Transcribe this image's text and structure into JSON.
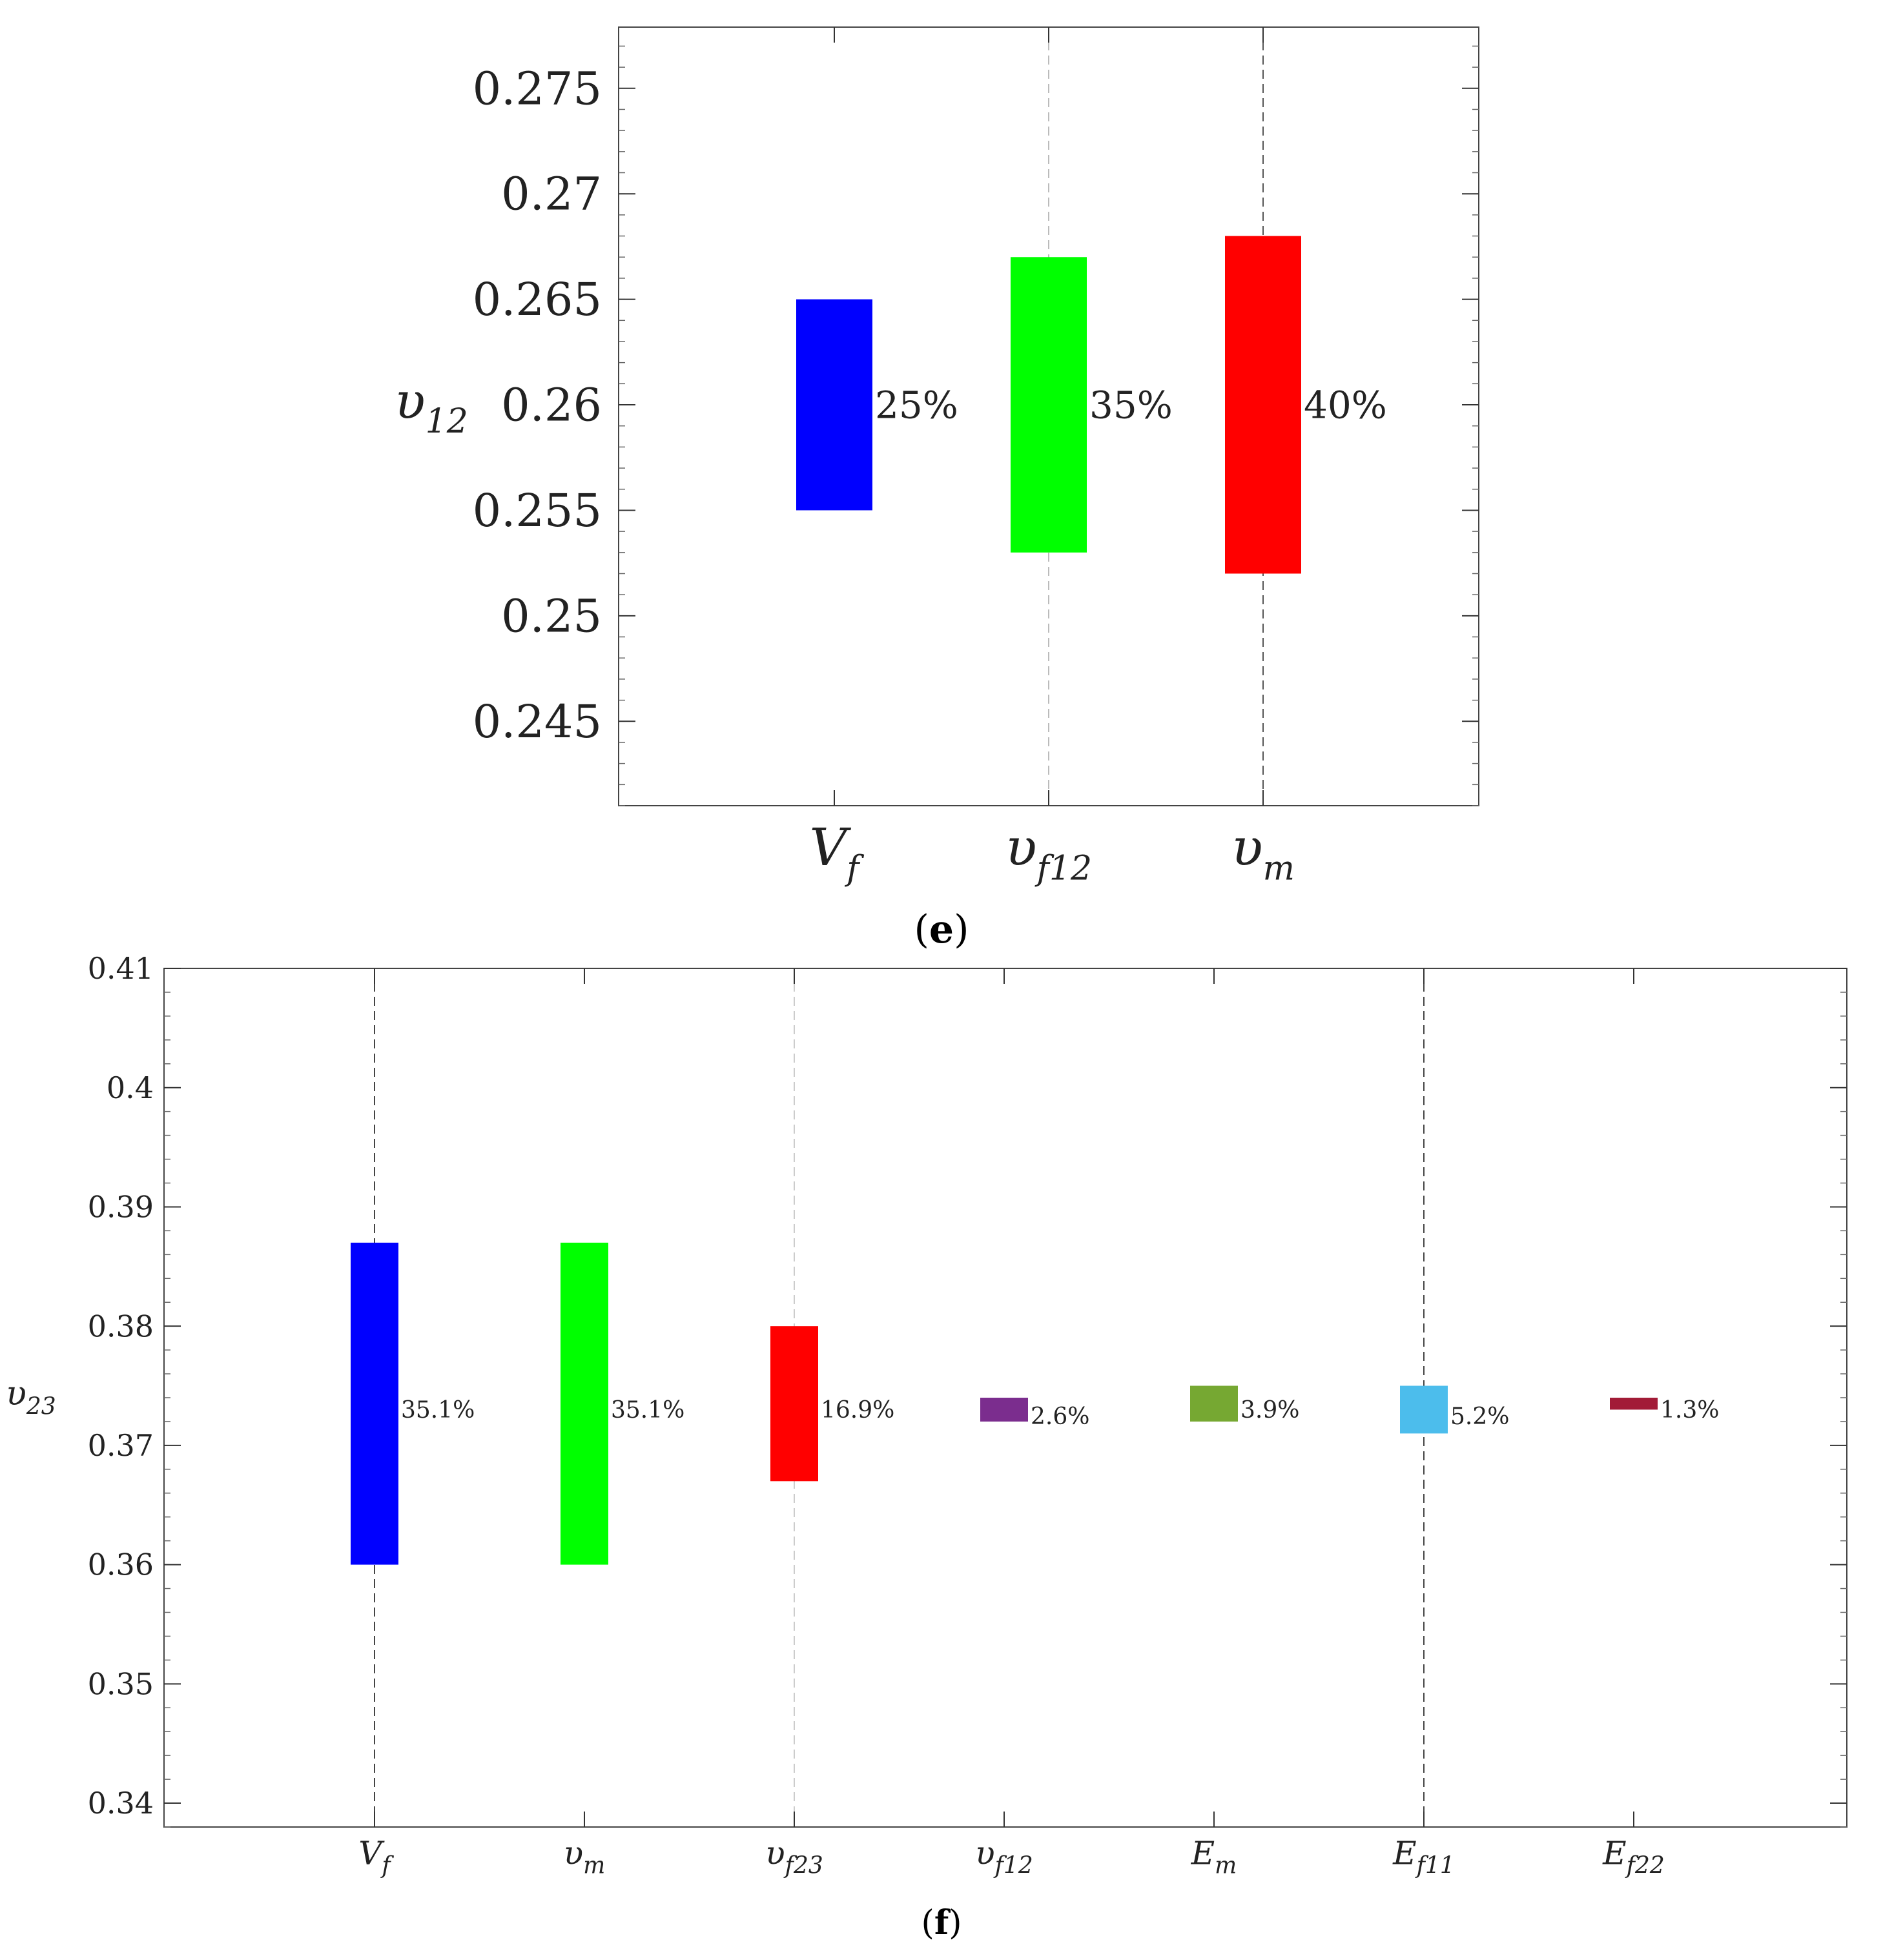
{
  "chart_data": [
    {
      "type": "floating-bar",
      "caption": {
        "open": "(",
        "letter": "e",
        "close": ")"
      },
      "ylabel": {
        "base": "υ",
        "sub": "12"
      },
      "ylim": [
        0.241,
        0.2779
      ],
      "yticks": [
        0.245,
        0.25,
        0.255,
        0.26,
        0.265,
        0.27,
        0.275
      ],
      "ytick_labels": [
        "0.245",
        "0.25",
        "0.255",
        "0.26",
        "0.265",
        "0.27",
        "0.275"
      ],
      "grid": false,
      "categories": [
        {
          "base": "V",
          "sub": "f"
        },
        {
          "base": "υ",
          "sub": "f12"
        },
        {
          "base": "υ",
          "sub": "m"
        }
      ],
      "bars": [
        {
          "low": 0.255,
          "high": 0.265,
          "label": "25%",
          "color": "#0000ff"
        },
        {
          "low": 0.253,
          "high": 0.267,
          "label": "35%",
          "color": "#00ff00"
        },
        {
          "low": 0.252,
          "high": 0.268,
          "label": "40%",
          "color": "#ff0000"
        }
      ]
    },
    {
      "type": "floating-bar",
      "caption": {
        "open": "(",
        "letter": "f",
        "close": ")"
      },
      "ylabel": {
        "base": "υ",
        "sub": "23"
      },
      "ylim": [
        0.338,
        0.41
      ],
      "yticks": [
        0.34,
        0.35,
        0.36,
        0.37,
        0.38,
        0.39,
        0.4,
        0.41
      ],
      "ytick_labels": [
        "0.34",
        "0.35",
        "0.36",
        "0.37",
        "0.38",
        "0.39",
        "0.4",
        "0.41"
      ],
      "grid": false,
      "categories": [
        {
          "base": "V",
          "sub": "f"
        },
        {
          "base": "υ",
          "sub": "m"
        },
        {
          "base": "υ",
          "sub": "f23"
        },
        {
          "base": "υ",
          "sub": "f12"
        },
        {
          "base": "E",
          "sub": "m"
        },
        {
          "base": "E",
          "sub": "f11"
        },
        {
          "base": "E",
          "sub": "f22"
        }
      ],
      "bars": [
        {
          "low": 0.36,
          "high": 0.387,
          "label": "35.1%",
          "color": "#0000ff"
        },
        {
          "low": 0.36,
          "high": 0.387,
          "label": "35.1%",
          "color": "#00ff00"
        },
        {
          "low": 0.367,
          "high": 0.38,
          "label": "16.9%",
          "color": "#ff0000"
        },
        {
          "low": 0.372,
          "high": 0.374,
          "label": "2.6%",
          "color": "#7b2d8e"
        },
        {
          "low": 0.372,
          "high": 0.375,
          "label": "3.9%",
          "color": "#76a832"
        },
        {
          "low": 0.371,
          "high": 0.375,
          "label": "5.2%",
          "color": "#4cbdec"
        },
        {
          "low": 0.373,
          "high": 0.374,
          "label": "1.3%",
          "color": "#a21b37"
        }
      ]
    }
  ]
}
